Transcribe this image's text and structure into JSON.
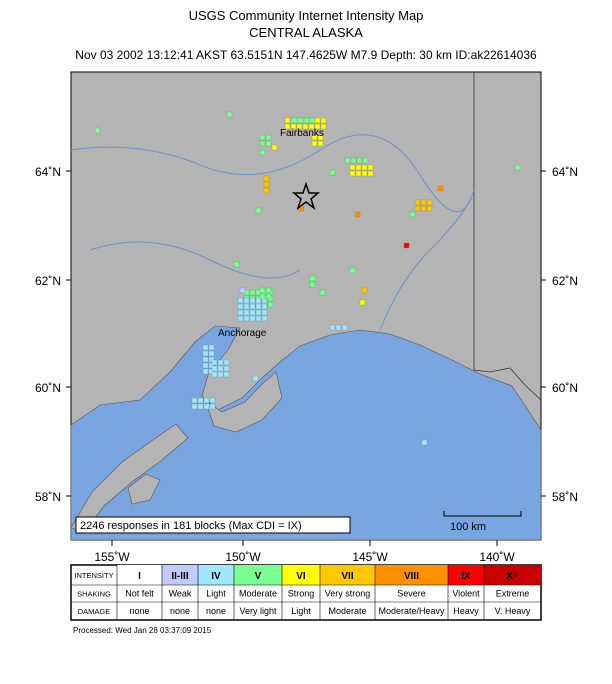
{
  "header": {
    "title": "USGS Community Internet Intensity Map",
    "region": "CENTRAL ALASKA",
    "event": "Nov 03 2002 13:12:41 AKST 63.5151N 147.4625W M7.9 Depth: 30 km ID:ak22614036"
  },
  "map": {
    "lat_labels": [
      "64˚N",
      "62˚N",
      "60˚N",
      "58˚N"
    ],
    "lon_labels": [
      "155˚W",
      "150˚W",
      "145˚W",
      "140˚W"
    ],
    "cities": [
      "Fairbanks",
      "Anchorage"
    ],
    "responses": "2246 responses in 181 blocks (Max CDI = IX)",
    "scale": "100 km"
  },
  "legend": {
    "row_headers": [
      "INTENSITY",
      "SHAKING",
      "DAMAGE"
    ],
    "intensity": [
      "I",
      "II-III",
      "IV",
      "V",
      "VI",
      "VII",
      "VIII",
      "IX",
      "X+"
    ],
    "shaking": [
      "Not felt",
      "Weak",
      "Light",
      "Moderate",
      "Strong",
      "Very strong",
      "Severe",
      "Violent",
      "Extreme"
    ],
    "damage": [
      "none",
      "none",
      "none",
      "Very light",
      "Light",
      "Moderate",
      "Moderate/Heavy",
      "Heavy",
      "V. Heavy"
    ]
  },
  "footer": "Processed: Wed Jan 28 03:37:09 2015"
}
